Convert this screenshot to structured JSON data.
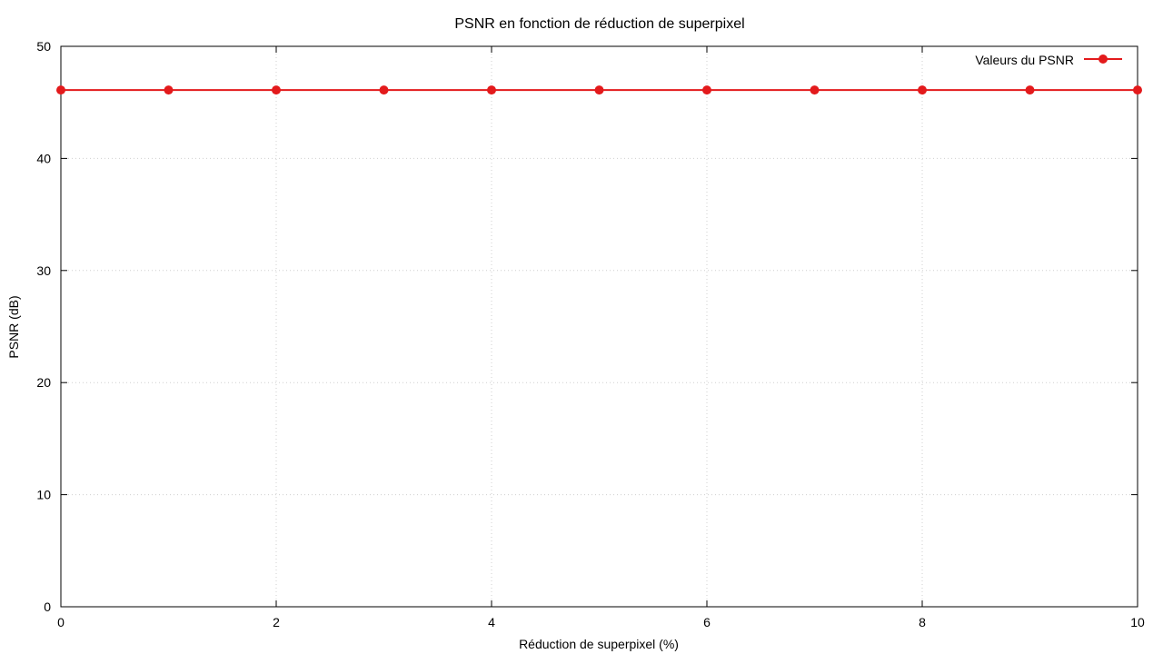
{
  "chart_data": {
    "type": "line",
    "title": "PSNR en fonction de réduction de superpixel",
    "xlabel": "Réduction de superpixel (%)",
    "ylabel": "PSNR (dB)",
    "xlim": [
      0,
      10
    ],
    "ylim": [
      0,
      50
    ],
    "x_ticks": [
      0,
      2,
      4,
      6,
      8,
      10
    ],
    "y_ticks": [
      0,
      10,
      20,
      30,
      40,
      50
    ],
    "grid": true,
    "legend_position": "top-right",
    "series": [
      {
        "name": "Valeurs du PSNR",
        "color": "#e31a1c",
        "x": [
          0,
          1,
          2,
          3,
          4,
          5,
          6,
          7,
          8,
          9,
          10
        ],
        "y": [
          46.1,
          46.1,
          46.1,
          46.1,
          46.1,
          46.1,
          46.1,
          46.1,
          46.1,
          46.1,
          46.1
        ]
      }
    ]
  }
}
